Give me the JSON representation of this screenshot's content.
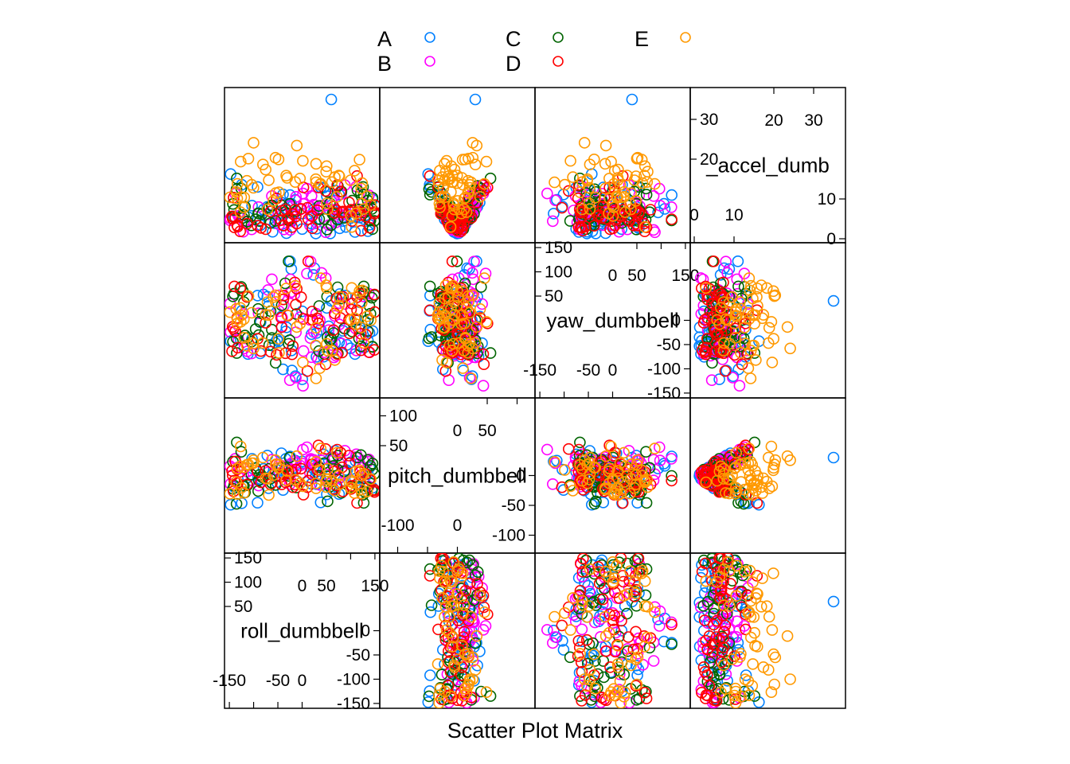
{
  "chart_data": {
    "type": "scatter",
    "title": "",
    "xlabel": "Scatter Plot Matrix",
    "ylabel": "",
    "colors": {
      "A": "#0080ff",
      "B": "#ff00ff",
      "C": "#006400",
      "D": "#ff0000",
      "E": "#ff9900"
    },
    "legend": {
      "position": "top",
      "entries": [
        "A",
        "B",
        "C",
        "D",
        "E"
      ]
    },
    "variables": [
      {
        "name": "roll_dumbbell",
        "display": "roll_dumbbell",
        "range": [
          -160,
          160
        ],
        "ticks_low": [
          -150,
          -100,
          -50,
          0
        ],
        "ticks_low_labels": [
          "-150",
          "-100",
          "-50",
          "0"
        ],
        "ticks_high": [
          50,
          100,
          150
        ],
        "ticks_high_labels": [
          "50",
          "100",
          "150"
        ],
        "bottom_labels": [
          "-150",
          "-50",
          "0"
        ],
        "top_labels": [
          "0",
          "50",
          "150"
        ]
      },
      {
        "name": "pitch_dumbbell",
        "display": "pitch_dumbbell",
        "range": [
          -130,
          130
        ],
        "ticks_low": [
          -100,
          -50,
          0
        ],
        "ticks_low_labels": [
          "-100",
          "-50",
          "0"
        ],
        "ticks_high": [
          50,
          100
        ],
        "ticks_high_labels": [
          "50",
          "100"
        ],
        "bottom_labels": [
          "-100",
          "0"
        ],
        "top_labels": [
          "0",
          "50"
        ]
      },
      {
        "name": "yaw_dumbbell",
        "display": "yaw_dumbbell",
        "range": [
          -160,
          160
        ],
        "ticks_low": [
          -150,
          -100,
          -50,
          0
        ],
        "ticks_low_labels": [
          "-150",
          "-100",
          "-50",
          "0"
        ],
        "ticks_high": [
          50,
          100,
          150
        ],
        "ticks_high_labels": [
          "50",
          "100",
          "150"
        ],
        "bottom_labels": [
          "-150",
          "-50",
          "0"
        ],
        "top_labels": [
          "0",
          "50",
          "150"
        ]
      },
      {
        "name": "total_accel_dumbbell",
        "display": "_accel_dumb",
        "range": [
          -1,
          38
        ],
        "ticks_low": [
          0,
          10
        ],
        "ticks_low_labels": [
          "0",
          "10"
        ],
        "ticks_high": [
          20,
          30
        ],
        "ticks_high_labels": [
          "20",
          "30"
        ],
        "bottom_labels": [
          "0",
          "10"
        ],
        "top_labels": [
          "20",
          "30"
        ]
      }
    ]
  }
}
